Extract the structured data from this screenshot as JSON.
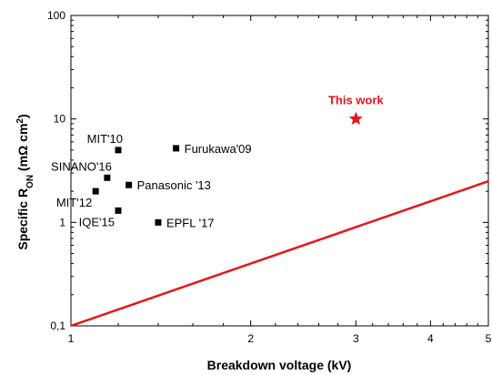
{
  "chart_data": {
    "type": "scatter",
    "xlabel": "Breakdown voltage (kV)",
    "ylabel": {
      "main": "Specific R",
      "sub": "ON",
      "unit_open": " (mΩ cm",
      "unit_sup": "2",
      "unit_close": ")"
    },
    "x_scale": "log",
    "y_scale": "log",
    "xlim": [
      1,
      5
    ],
    "ylim": [
      0.1,
      100
    ],
    "x_ticks": [
      {
        "value": 1,
        "label": "1"
      },
      {
        "value": 2,
        "label": "2"
      },
      {
        "value": 3,
        "label": "3"
      },
      {
        "value": 4,
        "label": "4"
      },
      {
        "value": 5,
        "label": "5"
      }
    ],
    "y_ticks": [
      {
        "value": 0.1,
        "label": "0,1"
      },
      {
        "value": 1,
        "label": "1"
      },
      {
        "value": 10,
        "label": "10"
      },
      {
        "value": 100,
        "label": "100"
      }
    ],
    "grid": false,
    "points": [
      {
        "label": "MIT'10",
        "x": 1.2,
        "y": 5.0,
        "label_pos": "above-left"
      },
      {
        "label": "Furukawa'09",
        "x": 1.5,
        "y": 5.2,
        "label_pos": "right"
      },
      {
        "label": "SINANO'16",
        "x": 1.15,
        "y": 2.7,
        "label_pos": "above-left"
      },
      {
        "label": "Panasonic '13",
        "x": 1.25,
        "y": 2.3,
        "label_pos": "right"
      },
      {
        "label": "MIT'12",
        "x": 1.1,
        "y": 2.0,
        "label_pos": "below-left"
      },
      {
        "label": "IQE'15",
        "x": 1.2,
        "y": 1.3,
        "label_pos": "below-left"
      },
      {
        "label": "EPFL '17",
        "x": 1.4,
        "y": 1.0,
        "label_pos": "right"
      }
    ],
    "highlight": {
      "label": "This work",
      "x": 3.0,
      "y": 10.0,
      "color": "#e8141a",
      "marker": "star"
    },
    "line": {
      "color": "#e8141a",
      "points": [
        {
          "x": 1,
          "y": 0.1
        },
        {
          "x": 5,
          "y": 2.5
        }
      ]
    },
    "colors": {
      "marker": "#000000",
      "accent": "#e8141a"
    }
  }
}
